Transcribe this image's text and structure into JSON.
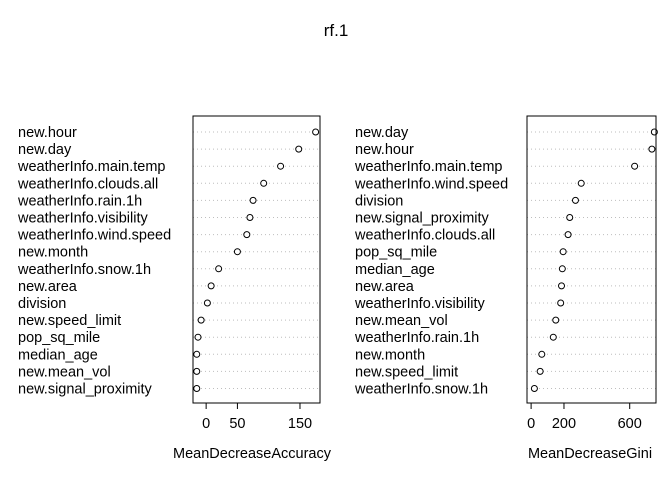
{
  "title": "rf.1",
  "chart_data": [
    {
      "type": "scatter",
      "xlabel": "MeanDecreaseAccuracy",
      "ticks": [
        0,
        50,
        150
      ],
      "xlim": [
        -21,
        182
      ],
      "marker": "open-circle",
      "grid": "dotted horizontal",
      "categories": [
        "new.hour",
        "new.day",
        "weatherInfo.main.temp",
        "weatherInfo.clouds.all",
        "weatherInfo.rain.1h",
        "weatherInfo.visibility",
        "weatherInfo.wind.speed",
        "new.month",
        "weatherInfo.snow.1h",
        "new.area",
        "division",
        "new.speed_limit",
        "pop_sq_mile",
        "median_age",
        "new.mean_vol",
        "new.signal_proximity"
      ],
      "values": [
        175,
        148,
        119,
        92,
        75,
        70,
        65,
        50,
        20,
        8,
        2,
        -8,
        -13,
        -15,
        -15,
        -15
      ]
    },
    {
      "type": "scatter",
      "xlabel": "MeanDecreaseGini",
      "ticks": [
        0,
        200,
        600
      ],
      "xlim": [
        -25,
        760
      ],
      "marker": "open-circle",
      "grid": "dotted horizontal",
      "categories": [
        "new.day",
        "new.hour",
        "weatherInfo.main.temp",
        "weatherInfo.wind.speed",
        "division",
        "new.signal_proximity",
        "weatherInfo.clouds.all",
        "pop_sq_mile",
        "median_age",
        "new.area",
        "weatherInfo.visibility",
        "new.mean_vol",
        "weatherInfo.rain.1h",
        "new.month",
        "new.speed_limit",
        "weatherInfo.snow.1h"
      ],
      "values": [
        750,
        735,
        630,
        305,
        270,
        235,
        225,
        195,
        190,
        185,
        180,
        150,
        135,
        65,
        55,
        20
      ]
    }
  ]
}
